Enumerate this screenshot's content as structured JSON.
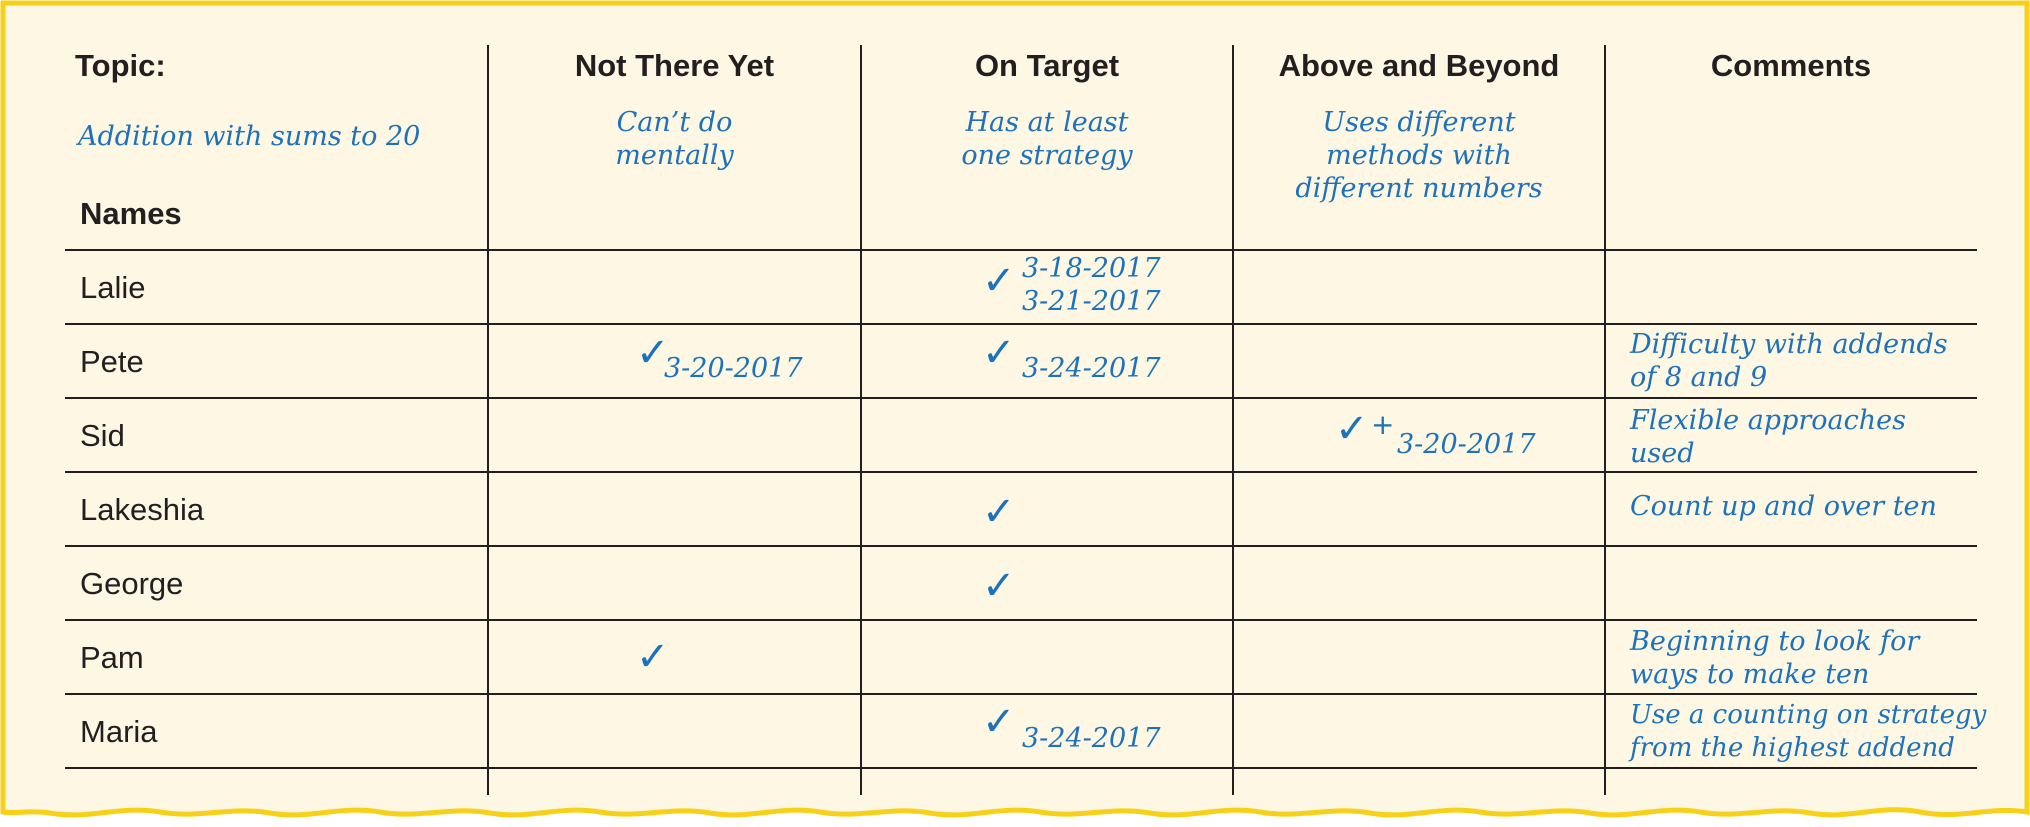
{
  "header": {
    "topic_label": "Topic:",
    "topic_value": "Addition with sums to 20",
    "names_label": "Names",
    "columns": [
      {
        "title": "Not There Yet",
        "descriptor": "Can’t do\nmentally"
      },
      {
        "title": "On Target",
        "descriptor": "Has at least\none strategy"
      },
      {
        "title": "Above and Beyond",
        "descriptor": "Uses different\nmethods with\ndifferent numbers"
      },
      {
        "title": "Comments",
        "descriptor": ""
      }
    ]
  },
  "rows": [
    {
      "name": "Lalie",
      "not_there_yet": "",
      "on_target": "3-18-2017\n3-21-2017",
      "above_beyond": "",
      "comment": ""
    },
    {
      "name": "Pete",
      "not_there_yet": "3-20-2017",
      "on_target": "3-24-2017",
      "above_beyond": "",
      "comment": "Difficulty with addends\nof 8 and 9"
    },
    {
      "name": "Sid",
      "not_there_yet": "",
      "on_target": "",
      "above_beyond": "3-20-2017",
      "comment": "Flexible approaches\nused"
    },
    {
      "name": "Lakeshia",
      "not_there_yet": "",
      "on_target": "",
      "above_beyond": "",
      "comment": "Count up and over ten"
    },
    {
      "name": "George",
      "not_there_yet": "",
      "on_target": "",
      "above_beyond": "",
      "comment": ""
    },
    {
      "name": "Pam",
      "not_there_yet": "",
      "on_target": "",
      "above_beyond": "",
      "comment": "Beginning to look for\nways to make ten"
    },
    {
      "name": "Maria",
      "not_there_yet": "",
      "on_target": "3-24-2017",
      "above_beyond": "",
      "comment": "Use a counting on strategy\nfrom the highest addend"
    }
  ],
  "marks": {
    "check_symbol": "✓",
    "plus_symbol": "+"
  },
  "colors": {
    "paper": "#fdf7e4",
    "border": "#f7d117",
    "ink": "#1d72bb",
    "grid": "#231f20"
  }
}
